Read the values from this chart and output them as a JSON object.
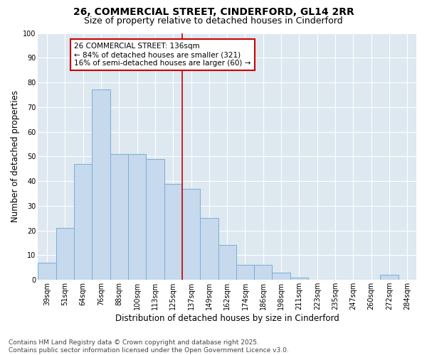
{
  "title1": "26, COMMERCIAL STREET, CINDERFORD, GL14 2RR",
  "title2": "Size of property relative to detached houses in Cinderford",
  "xlabel": "Distribution of detached houses by size in Cinderford",
  "ylabel": "Number of detached properties",
  "categories": [
    "39sqm",
    "51sqm",
    "64sqm",
    "76sqm",
    "88sqm",
    "100sqm",
    "113sqm",
    "125sqm",
    "137sqm",
    "149sqm",
    "162sqm",
    "174sqm",
    "186sqm",
    "198sqm",
    "211sqm",
    "223sqm",
    "235sqm",
    "247sqm",
    "260sqm",
    "272sqm",
    "284sqm"
  ],
  "values": [
    7,
    21,
    47,
    77,
    51,
    51,
    49,
    39,
    37,
    25,
    14,
    6,
    6,
    3,
    1,
    0,
    0,
    0,
    0,
    2,
    0
  ],
  "bar_color": "#c6d9ed",
  "bar_edge_color": "#7aaed6",
  "vline_index": 8,
  "vline_color": "#cc0000",
  "annotation_text": "26 COMMERCIAL STREET: 136sqm\n← 84% of detached houses are smaller (321)\n16% of semi-detached houses are larger (60) →",
  "annotation_box_facecolor": "#ffffff",
  "annotation_box_edgecolor": "#cc0000",
  "ylim": [
    0,
    100
  ],
  "yticks": [
    0,
    10,
    20,
    30,
    40,
    50,
    60,
    70,
    80,
    90,
    100
  ],
  "fig_facecolor": "#ffffff",
  "axes_facecolor": "#dde8f0",
  "grid_color": "#ffffff",
  "title_fontsize": 10,
  "subtitle_fontsize": 9,
  "axis_label_fontsize": 8.5,
  "tick_fontsize": 7,
  "annotation_fontsize": 7.5,
  "footer_fontsize": 6.5,
  "footer": "Contains HM Land Registry data © Crown copyright and database right 2025.\nContains public sector information licensed under the Open Government Licence v3.0."
}
